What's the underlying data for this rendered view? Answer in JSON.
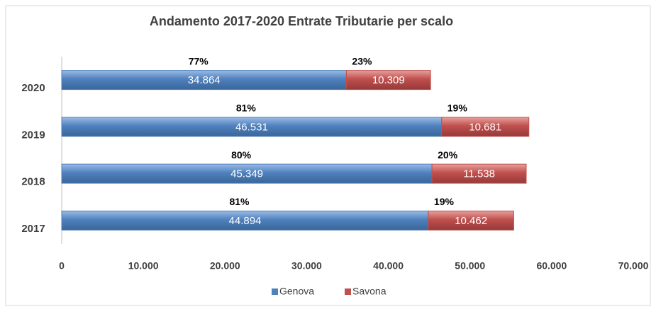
{
  "chart_data": {
    "type": "stacked_barh",
    "title": "Andamento 2017-2020 Entrate Tributarie per scalo",
    "categories": [
      "2020",
      "2019",
      "2018",
      "2017"
    ],
    "series": [
      {
        "name": "Genova",
        "color": "#4f81bd",
        "values": [
          34864,
          46531,
          45349,
          44894
        ],
        "value_labels": [
          "34.864",
          "46.531",
          "45.349",
          "44.894"
        ],
        "share_labels": [
          "77%",
          "81%",
          "80%",
          "81%"
        ]
      },
      {
        "name": "Savona",
        "color": "#c0504d",
        "values": [
          10309,
          10681,
          11538,
          10462
        ],
        "value_labels": [
          "10.309",
          "10.681",
          "11.538",
          "10.462"
        ],
        "share_labels": [
          "23%",
          "19%",
          "20%",
          "19%"
        ]
      }
    ],
    "xlim": [
      0,
      70000
    ],
    "xticks": [
      0,
      {
        "value": 10000,
        "label": "10.000"
      },
      {
        "value": 20000,
        "label": "20.000"
      },
      {
        "value": 30000,
        "label": "30.000"
      },
      {
        "value": 40000,
        "label": "40.000"
      },
      {
        "value": 50000,
        "label": "50.000"
      },
      {
        "value": 60000,
        "label": "60.000"
      },
      {
        "value": 70000,
        "label": "70.000"
      }
    ],
    "grid": false,
    "legend": "bottom"
  }
}
